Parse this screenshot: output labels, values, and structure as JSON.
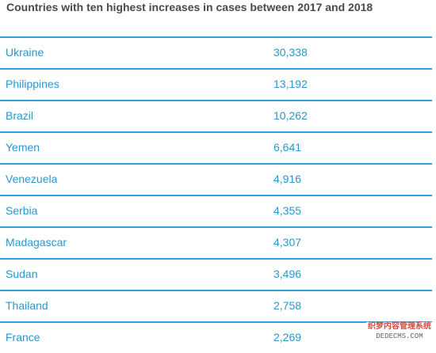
{
  "title": "Countries with ten highest increases in cases between 2017 and 2018",
  "rows": [
    {
      "country": "Ukraine",
      "value": "30,338"
    },
    {
      "country": "Philippines",
      "value": "13,192"
    },
    {
      "country": "Brazil",
      "value": "10,262"
    },
    {
      "country": "Yemen",
      "value": "6,641"
    },
    {
      "country": "Venezuela",
      "value": "4,916"
    },
    {
      "country": "Serbia",
      "value": "4,355"
    },
    {
      "country": "Madagascar",
      "value": "4,307"
    },
    {
      "country": "Sudan",
      "value": "3,496"
    },
    {
      "country": "Thailand",
      "value": "2,758"
    },
    {
      "country": "France",
      "value": "2,269"
    }
  ],
  "watermark": {
    "cn": "织梦内容管理系统",
    "en": "DEDECMS.COM"
  },
  "colors": {
    "text": "#2b97cc",
    "rule": "#3a9fd1",
    "title": "#4a4a4a"
  }
}
